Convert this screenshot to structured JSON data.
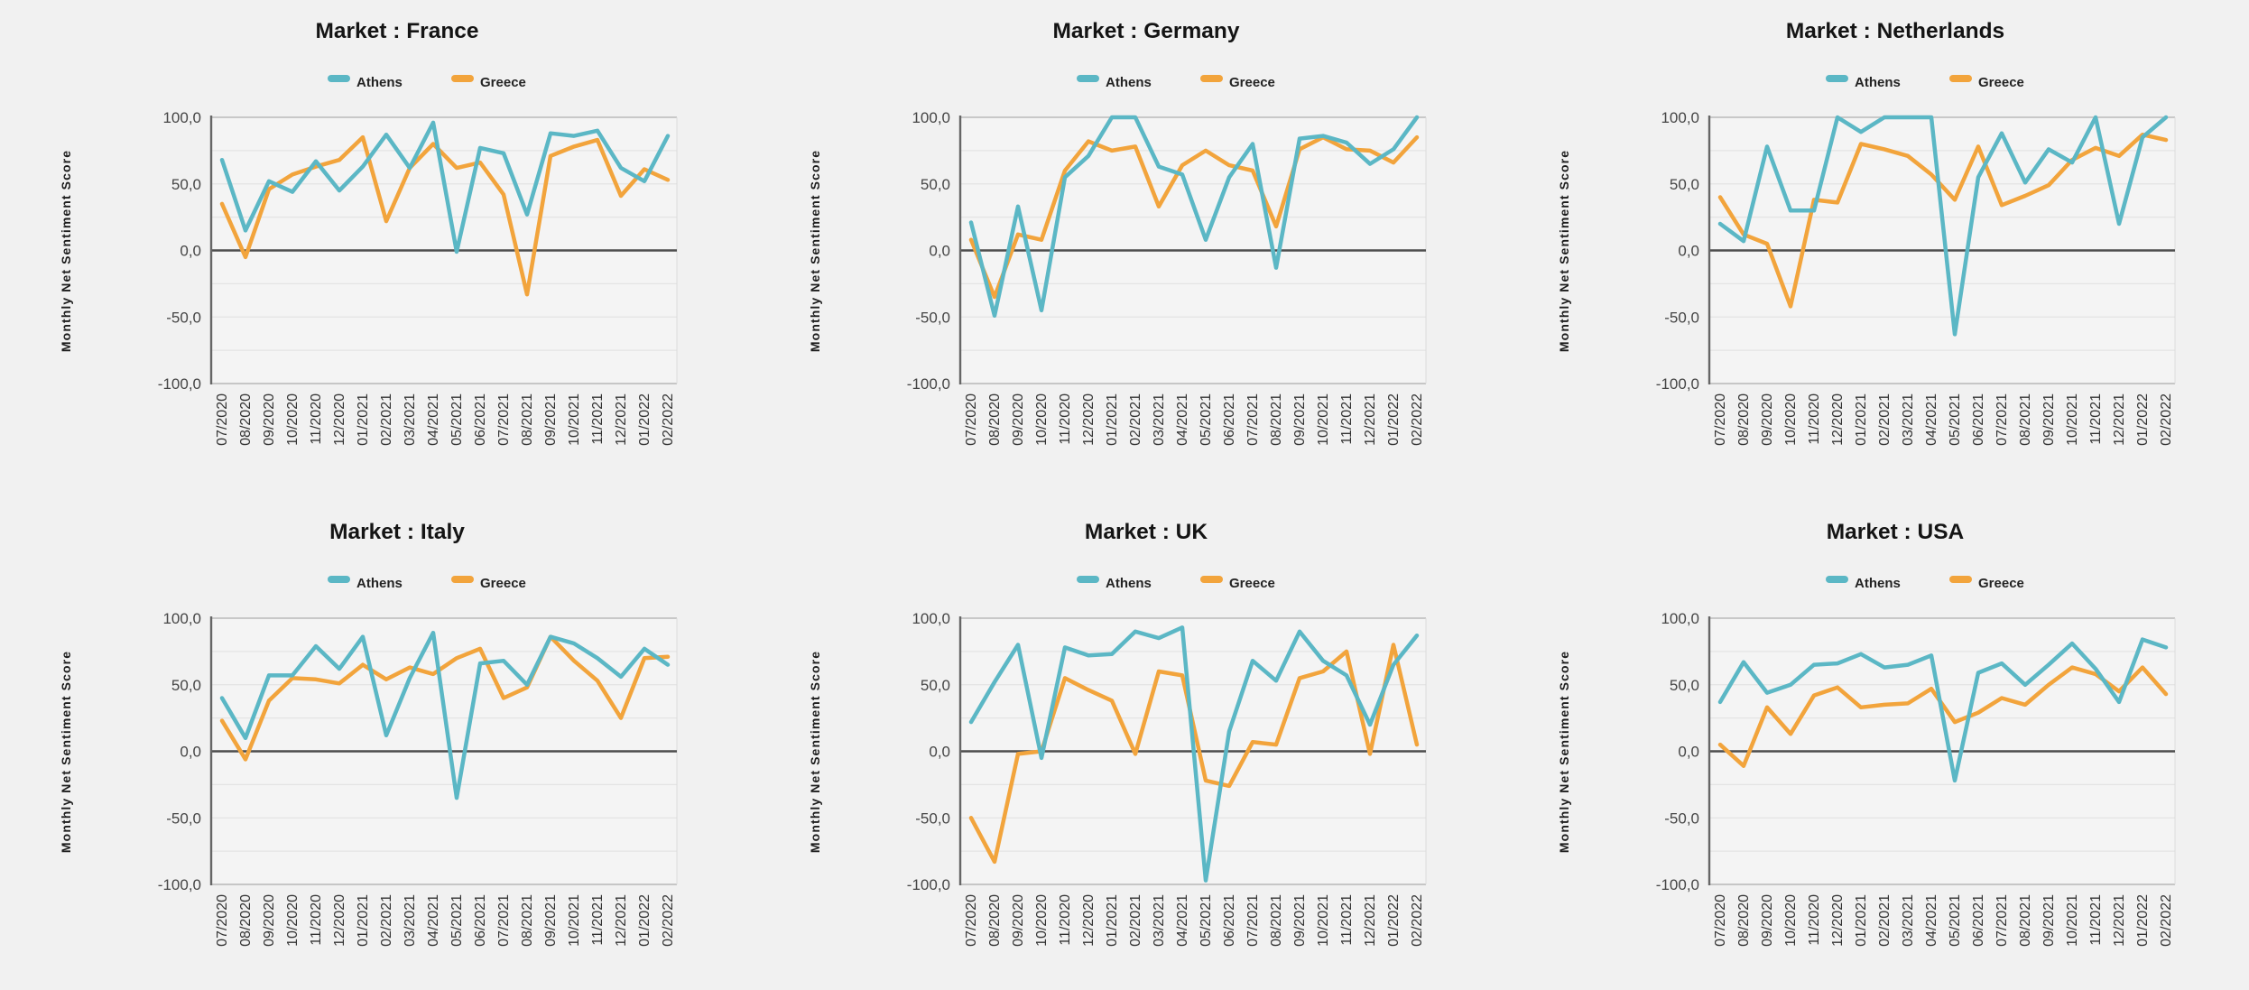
{
  "page": {
    "type": "small-multiples line chart report",
    "title_prefix": "Market : "
  },
  "colors": {
    "background": "#f1f1f1",
    "plot_background": "#f4f4f4",
    "gridline_minor": "#e3e3e3",
    "gridline_top": "#b9b9b9",
    "gridline_bottom": "#c6c6c6",
    "zero_line": "#4d4d4d",
    "axis_line": "#666666",
    "plot_right_edge": "#dcdcdc",
    "athens_series": "#5bb7c5",
    "greece_series": "#f2a43c",
    "title_text": "#141414",
    "tick_text": "#454545"
  },
  "chart_data": [
    {
      "type": "line",
      "market": "France",
      "title": "Market : France",
      "xlabel": "",
      "ylabel": "Monthly Net Sentiment Score",
      "ylim": [
        -100,
        100
      ],
      "ytick_values": [
        100,
        50,
        0,
        -50,
        -100
      ],
      "ytick_labels": [
        "100,0",
        "50,0",
        "0,0",
        "-50,0",
        "-100,0"
      ],
      "grid": true,
      "grid_interval": 25,
      "legend_position": "top",
      "categories": [
        "07/2020",
        "08/2020",
        "09/2020",
        "10/2020",
        "11/2020",
        "12/2020",
        "01/2021",
        "02/2021",
        "03/2021",
        "04/2021",
        "05/2021",
        "06/2021",
        "07/2021",
        "08/2021",
        "09/2021",
        "10/2021",
        "11/2021",
        "12/2021",
        "01/2022",
        "02/2022"
      ],
      "series": [
        {
          "name": "Athens",
          "color": "#5bb7c5",
          "values": [
            68,
            15,
            52,
            44,
            67,
            45,
            63,
            87,
            62,
            96,
            -1,
            77,
            73,
            27,
            88,
            86,
            90,
            62,
            52,
            86
          ]
        },
        {
          "name": "Greece",
          "color": "#f2a43c",
          "values": [
            35,
            -5,
            46,
            57,
            63,
            68,
            85,
            22,
            62,
            80,
            62,
            66,
            42,
            -33,
            71,
            78,
            83,
            41,
            61,
            53
          ]
        }
      ]
    },
    {
      "type": "line",
      "market": "Germany",
      "title": "Market : Germany",
      "xlabel": "",
      "ylabel": "Monthly Net Sentiment Score",
      "ylim": [
        -100,
        100
      ],
      "ytick_values": [
        100,
        50,
        0,
        -50,
        -100
      ],
      "ytick_labels": [
        "100,0",
        "50,0",
        "0,0",
        "-50,0",
        "-100,0"
      ],
      "grid": true,
      "grid_interval": 25,
      "legend_position": "top",
      "categories": [
        "07/2020",
        "08/2020",
        "09/2020",
        "10/2020",
        "11/2020",
        "12/2020",
        "01/2021",
        "02/2021",
        "03/2021",
        "04/2021",
        "05/2021",
        "06/2021",
        "07/2021",
        "08/2021",
        "09/2021",
        "10/2021",
        "11/2021",
        "12/2021",
        "01/2022",
        "02/2022"
      ],
      "series": [
        {
          "name": "Athens",
          "color": "#5bb7c5",
          "values": [
            21,
            -49,
            33,
            -45,
            55,
            71,
            100,
            100,
            63,
            57,
            8,
            55,
            80,
            -13,
            84,
            86,
            81,
            65,
            76,
            100
          ]
        },
        {
          "name": "Greece",
          "color": "#f2a43c",
          "values": [
            8,
            -35,
            12,
            8,
            60,
            82,
            75,
            78,
            33,
            64,
            75,
            64,
            60,
            18,
            76,
            85,
            76,
            75,
            66,
            85
          ]
        }
      ]
    },
    {
      "type": "line",
      "market": "Netherlands",
      "title": "Market : Netherlands",
      "xlabel": "",
      "ylabel": "Monthly Net Sentiment Score",
      "ylim": [
        -100,
        100
      ],
      "ytick_values": [
        100,
        50,
        0,
        -50,
        -100
      ],
      "ytick_labels": [
        "100,0",
        "50,0",
        "0,0",
        "-50,0",
        "-100,0"
      ],
      "grid": true,
      "grid_interval": 25,
      "legend_position": "top",
      "categories": [
        "07/2020",
        "08/2020",
        "09/2020",
        "10/2020",
        "11/2020",
        "12/2020",
        "01/2021",
        "02/2021",
        "03/2021",
        "04/2021",
        "05/2021",
        "06/2021",
        "07/2021",
        "08/2021",
        "09/2021",
        "10/2021",
        "11/2021",
        "12/2021",
        "01/2022",
        "02/2022"
      ],
      "series": [
        {
          "name": "Athens",
          "color": "#5bb7c5",
          "values": [
            20,
            7,
            78,
            30,
            30,
            100,
            89,
            100,
            100,
            100,
            -63,
            55,
            88,
            51,
            76,
            66,
            100,
            20,
            85,
            100
          ]
        },
        {
          "name": "Greece",
          "color": "#f2a43c",
          "values": [
            40,
            12,
            5,
            -42,
            38,
            36,
            80,
            76,
            71,
            57,
            38,
            78,
            34,
            41,
            49,
            68,
            77,
            71,
            87,
            83
          ]
        }
      ]
    },
    {
      "type": "line",
      "market": "Italy",
      "title": "Market : Italy",
      "xlabel": "",
      "ylabel": "Monthly Net Sentiment Score",
      "ylim": [
        -100,
        100
      ],
      "ytick_values": [
        100,
        50,
        0,
        -50,
        -100
      ],
      "ytick_labels": [
        "100,0",
        "50,0",
        "0,0",
        "-50,0",
        "-100,0"
      ],
      "grid": true,
      "grid_interval": 25,
      "legend_position": "top",
      "categories": [
        "07/2020",
        "08/2020",
        "09/2020",
        "10/2020",
        "11/2020",
        "12/2020",
        "01/2021",
        "02/2021",
        "03/2021",
        "04/2021",
        "05/2021",
        "06/2021",
        "07/2021",
        "08/2021",
        "09/2021",
        "10/2021",
        "11/2021",
        "12/2021",
        "01/2022",
        "02/2022"
      ],
      "series": [
        {
          "name": "Athens",
          "color": "#5bb7c5",
          "values": [
            40,
            10,
            57,
            57,
            79,
            62,
            86,
            12,
            55,
            89,
            -35,
            66,
            68,
            50,
            86,
            81,
            70,
            56,
            77,
            65
          ]
        },
        {
          "name": "Greece",
          "color": "#f2a43c",
          "values": [
            23,
            -6,
            38,
            55,
            54,
            51,
            65,
            54,
            63,
            58,
            70,
            77,
            40,
            48,
            86,
            68,
            53,
            25,
            70,
            71
          ]
        }
      ]
    },
    {
      "type": "line",
      "market": "UK",
      "title": "Market : UK",
      "xlabel": "",
      "ylabel": "Monthly Net Sentiment Score",
      "ylim": [
        -100,
        100
      ],
      "ytick_values": [
        100,
        50,
        0,
        -50,
        -100
      ],
      "ytick_labels": [
        "100,0",
        "50,0",
        "0,0",
        "-50,0",
        "-100,0"
      ],
      "grid": true,
      "grid_interval": 25,
      "legend_position": "top",
      "categories": [
        "07/2020",
        "08/2020",
        "09/2020",
        "10/2020",
        "11/2020",
        "12/2020",
        "01/2021",
        "02/2021",
        "03/2021",
        "04/2021",
        "05/2021",
        "06/2021",
        "07/2021",
        "08/2021",
        "09/2021",
        "10/2021",
        "11/2021",
        "12/2021",
        "01/2022",
        "02/2022"
      ],
      "series": [
        {
          "name": "Athens",
          "color": "#5bb7c5",
          "values": [
            22,
            52,
            80,
            -5,
            78,
            72,
            73,
            90,
            85,
            93,
            -97,
            15,
            68,
            53,
            90,
            68,
            57,
            20,
            65,
            87
          ]
        },
        {
          "name": "Greece",
          "color": "#f2a43c",
          "values": [
            -50,
            -83,
            -2,
            0,
            55,
            46,
            38,
            -2,
            60,
            57,
            -22,
            -26,
            7,
            5,
            55,
            60,
            75,
            -2,
            80,
            5
          ]
        }
      ]
    },
    {
      "type": "line",
      "market": "USA",
      "title": "Market : USA",
      "xlabel": "",
      "ylabel": "Monthly Net Sentiment Score",
      "ylim": [
        -100,
        100
      ],
      "ytick_values": [
        100,
        50,
        0,
        -50,
        -100
      ],
      "ytick_labels": [
        "100,0",
        "50,0",
        "0,0",
        "-50,0",
        "-100,0"
      ],
      "grid": true,
      "grid_interval": 25,
      "legend_position": "top",
      "categories": [
        "07/2020",
        "08/2020",
        "09/2020",
        "10/2020",
        "11/2020",
        "12/2020",
        "01/2021",
        "02/2021",
        "03/2021",
        "04/2021",
        "05/2021",
        "06/2021",
        "07/2021",
        "08/2021",
        "09/2021",
        "10/2021",
        "11/2021",
        "12/2021",
        "01/2022",
        "02/2022"
      ],
      "series": [
        {
          "name": "Athens",
          "color": "#5bb7c5",
          "values": [
            37,
            67,
            44,
            50,
            65,
            66,
            73,
            63,
            65,
            72,
            -22,
            59,
            66,
            50,
            65,
            81,
            62,
            37,
            84,
            78
          ]
        },
        {
          "name": "Greece",
          "color": "#f2a43c",
          "values": [
            5,
            -11,
            33,
            13,
            42,
            48,
            33,
            35,
            36,
            47,
            22,
            29,
            40,
            35,
            50,
            63,
            58,
            45,
            63,
            43
          ]
        }
      ]
    }
  ]
}
